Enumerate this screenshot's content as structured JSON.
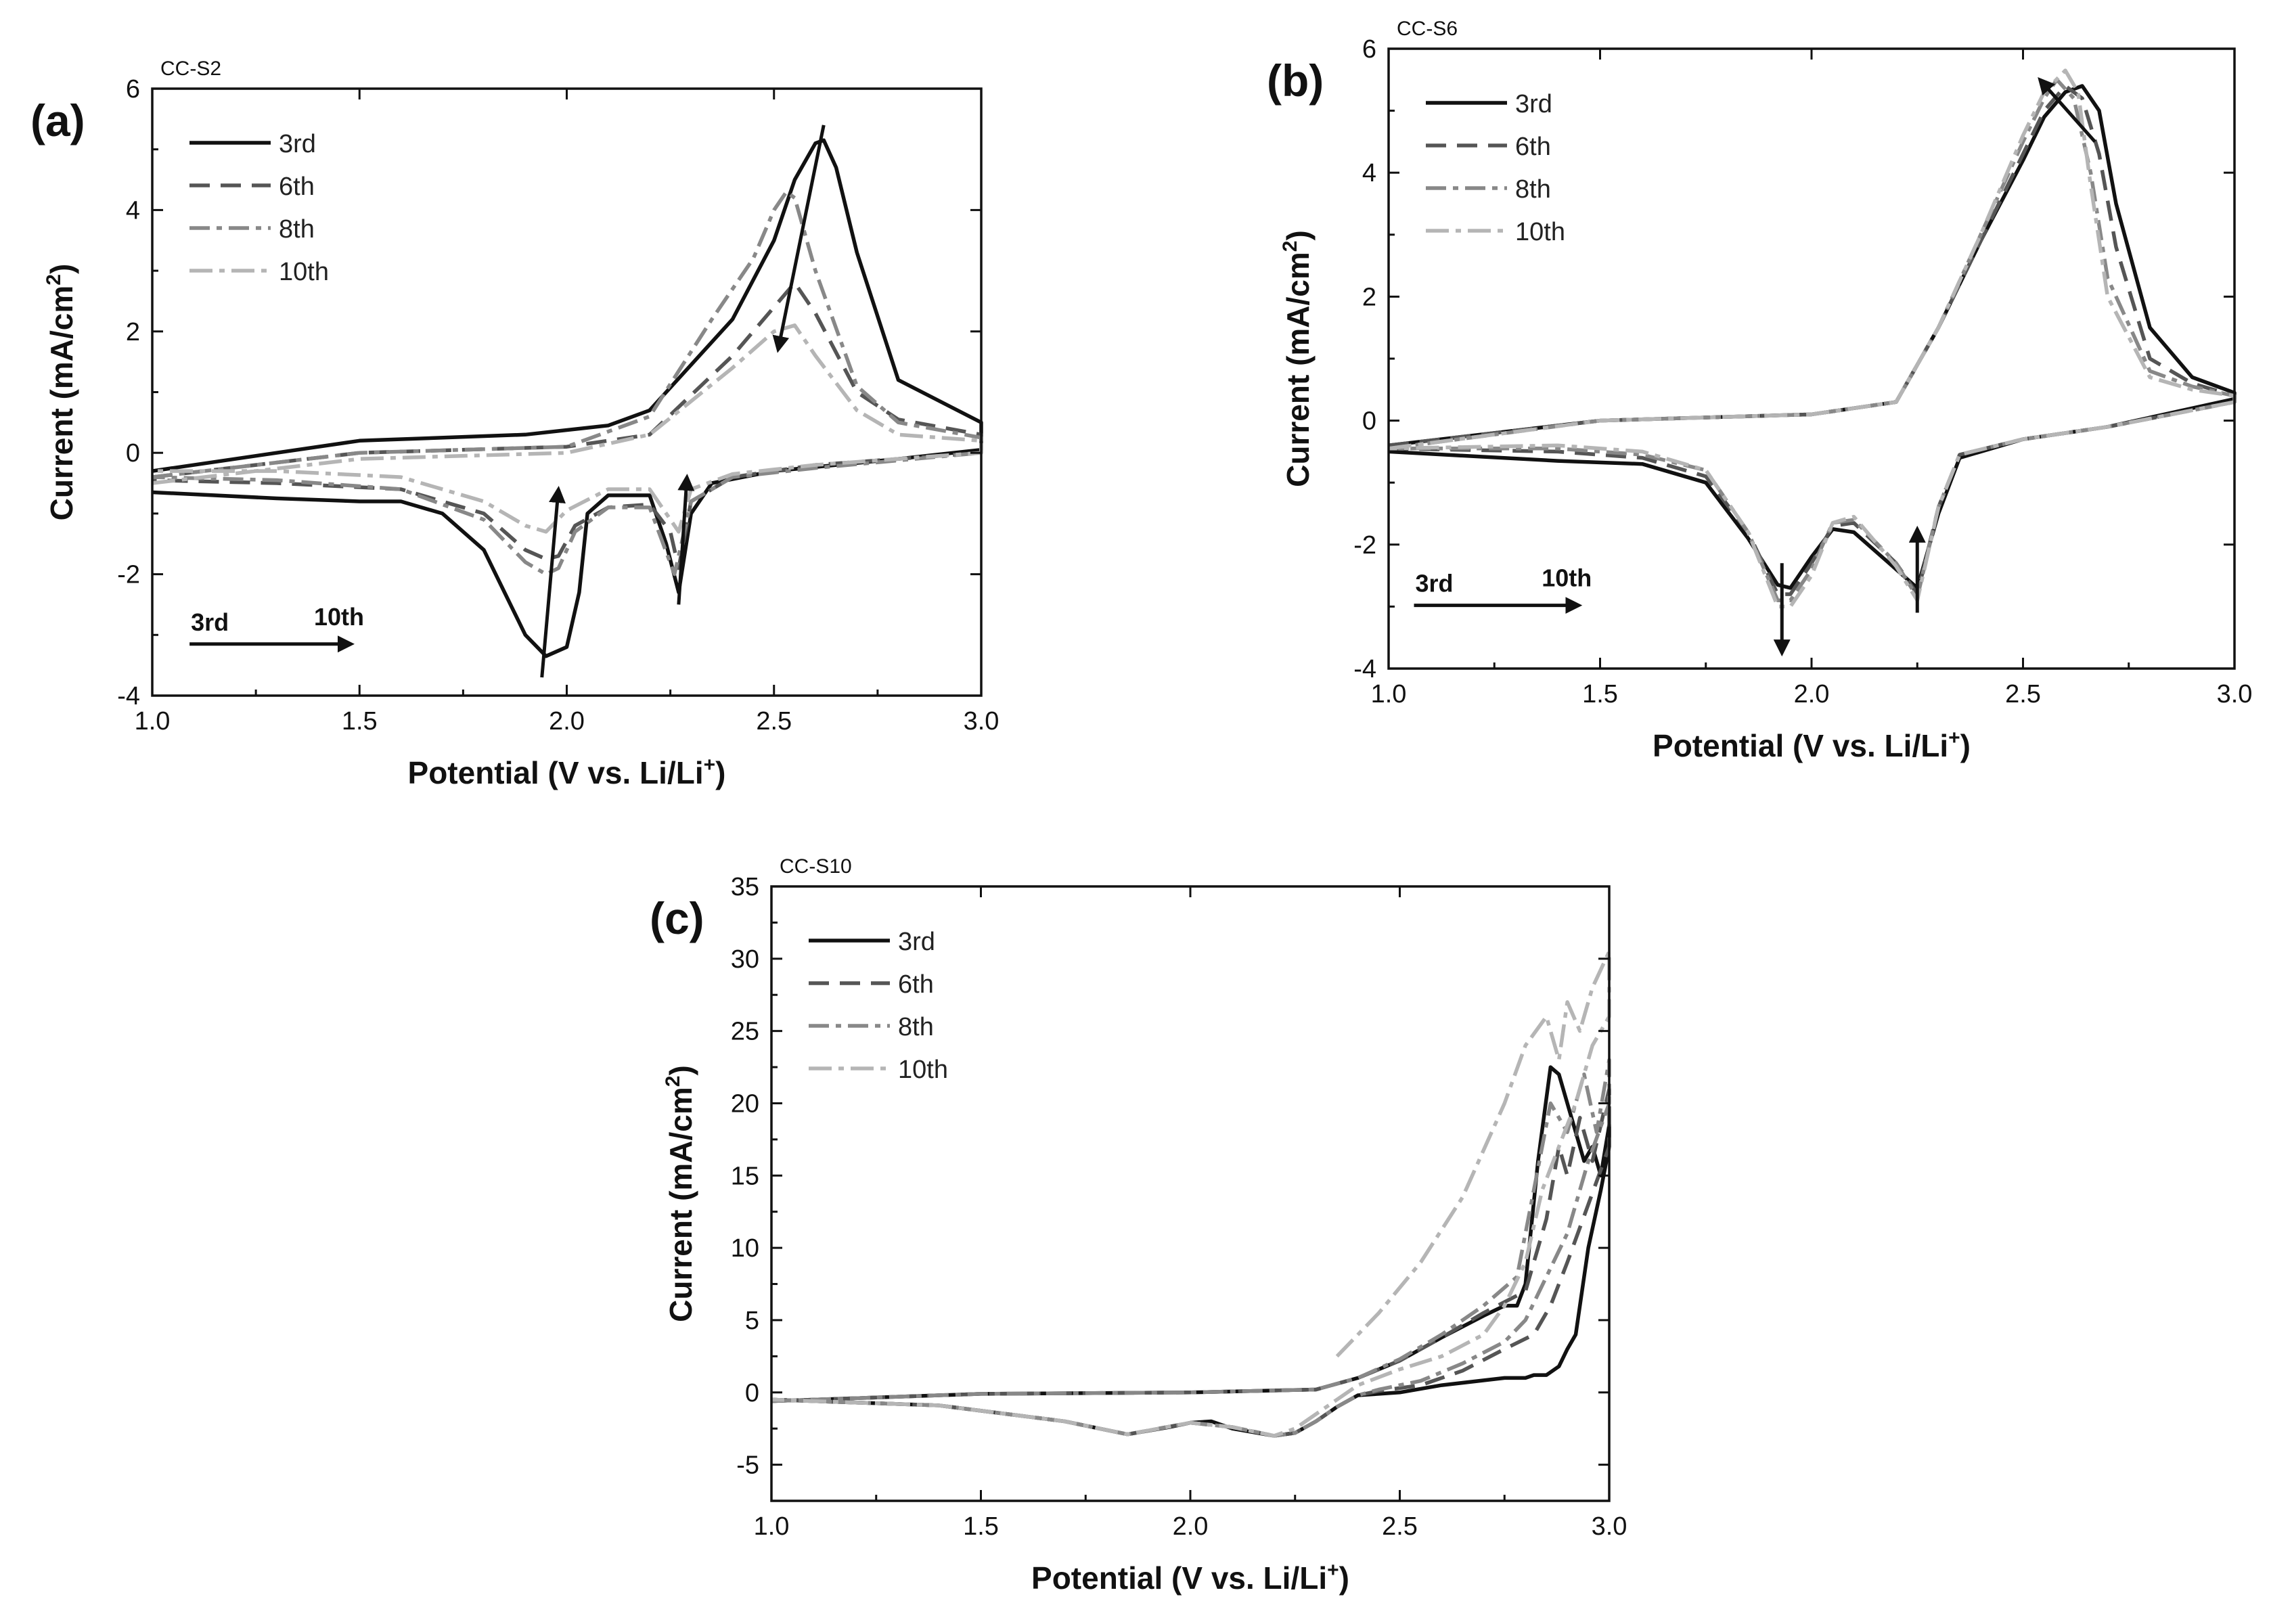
{
  "figure": {
    "description": "Cyclic voltammograms, cycles 3rd–10th",
    "colors": {
      "3rd": "#111111",
      "6th": "#555555",
      "8th": "#888888",
      "10th": "#b5b5b5"
    }
  },
  "chart_data": [
    {
      "type": "line",
      "panel": "(a)",
      "title": "CC-S2",
      "xlabel": "Potential (V vs. Li/Li",
      "xlabel_sup": "+",
      "xlabel_end": ")",
      "ylabel": "Current (mA/cm",
      "ylabel_sup": "2",
      "ylabel_end": ")",
      "xlim": [
        1.0,
        3.0
      ],
      "ylim": [
        -4,
        6
      ],
      "xticks": [
        1.0,
        1.5,
        2.0,
        2.5,
        3.0
      ],
      "xtick_labels": [
        "1.0",
        "1.5",
        "2.0",
        "2.5",
        "3.0"
      ],
      "yticks": [
        -4,
        -2,
        0,
        2,
        4,
        6
      ],
      "ytick_labels": [
        "-4",
        "-2",
        "0",
        "2",
        "4",
        "6"
      ],
      "legend": [
        "3rd",
        "6th",
        "8th",
        "10th"
      ],
      "legend_position": "top-left",
      "cycle_arrow": {
        "start": "3rd",
        "end": "10th",
        "from": [
          1.09,
          -3.15
        ],
        "to": [
          1.48,
          -3.15
        ]
      },
      "trend_arrows": [
        {
          "from": [
            1.94,
            -3.7
          ],
          "to": [
            1.98,
            -0.6
          ]
        },
        {
          "from": [
            2.27,
            -2.5
          ],
          "to": [
            2.29,
            -0.4
          ]
        },
        {
          "from": [
            2.62,
            5.4
          ],
          "to": [
            2.51,
            1.7
          ]
        }
      ],
      "series": [
        {
          "name": "3rd",
          "x": [
            1.0,
            1.5,
            1.9,
            2.1,
            2.2,
            2.4,
            2.5,
            2.55,
            2.6,
            2.62,
            2.65,
            2.7,
            2.8,
            3.0,
            3.0,
            2.8,
            2.5,
            2.35,
            2.3,
            2.27,
            2.24,
            2.2,
            2.1,
            2.05,
            2.03,
            2.0,
            1.95,
            1.9,
            1.85,
            1.8,
            1.7,
            1.6,
            1.5,
            1.3,
            1.0
          ],
          "y": [
            -0.3,
            0.2,
            0.3,
            0.45,
            0.7,
            2.2,
            3.5,
            4.5,
            5.1,
            5.15,
            4.7,
            3.3,
            1.2,
            0.5,
            0.05,
            -0.1,
            -0.3,
            -0.5,
            -1.0,
            -2.3,
            -1.5,
            -0.7,
            -0.7,
            -1.0,
            -2.3,
            -3.2,
            -3.35,
            -3.0,
            -2.3,
            -1.6,
            -1.0,
            -0.8,
            -0.8,
            -0.75,
            -0.65
          ]
        },
        {
          "name": "6th",
          "x": [
            1.0,
            1.5,
            2.0,
            2.2,
            2.4,
            2.5,
            2.55,
            2.6,
            2.7,
            2.8,
            3.0,
            3.0,
            2.6,
            2.4,
            2.3,
            2.27,
            2.25,
            2.2,
            2.1,
            2.02,
            1.98,
            1.95,
            1.9,
            1.8,
            1.6,
            1.3,
            1.0
          ],
          "y": [
            -0.4,
            0.0,
            0.1,
            0.3,
            1.6,
            2.4,
            2.8,
            2.3,
            1.0,
            0.55,
            0.3,
            0.0,
            -0.2,
            -0.4,
            -0.8,
            -1.9,
            -1.3,
            -0.85,
            -0.9,
            -1.2,
            -1.7,
            -1.75,
            -1.6,
            -1.0,
            -0.6,
            -0.5,
            -0.45
          ]
        },
        {
          "name": "8th",
          "x": [
            1.0,
            1.5,
            2.0,
            2.2,
            2.35,
            2.45,
            2.5,
            2.53,
            2.55,
            2.6,
            2.7,
            2.8,
            3.0,
            3.0,
            2.6,
            2.4,
            2.3,
            2.26,
            2.2,
            2.1,
            2.02,
            1.98,
            1.95,
            1.9,
            1.8,
            1.6,
            1.3,
            1.0
          ],
          "y": [
            -0.4,
            0.0,
            0.1,
            0.6,
            2.2,
            3.2,
            4.0,
            4.3,
            4.2,
            3.0,
            1.1,
            0.5,
            0.25,
            0.0,
            -0.25,
            -0.4,
            -0.8,
            -2.0,
            -0.9,
            -0.9,
            -1.3,
            -1.9,
            -2.0,
            -1.8,
            -1.1,
            -0.6,
            -0.45,
            -0.4
          ]
        },
        {
          "name": "10th",
          "x": [
            1.0,
            1.5,
            2.0,
            2.2,
            2.4,
            2.5,
            2.55,
            2.6,
            2.7,
            2.8,
            3.0,
            3.0,
            2.6,
            2.4,
            2.3,
            2.27,
            2.2,
            2.1,
            2.0,
            1.95,
            1.9,
            1.8,
            1.6,
            1.3,
            1.0
          ],
          "y": [
            -0.5,
            -0.1,
            0.0,
            0.3,
            1.4,
            2.0,
            2.1,
            1.6,
            0.7,
            0.3,
            0.2,
            0.0,
            -0.2,
            -0.35,
            -0.6,
            -1.3,
            -0.6,
            -0.6,
            -0.95,
            -1.3,
            -1.2,
            -0.8,
            -0.4,
            -0.3,
            -0.3
          ]
        }
      ]
    },
    {
      "type": "line",
      "panel": "(b)",
      "title": "CC-S6",
      "xlabel": "Potential (V vs. Li/Li",
      "xlabel_sup": "+",
      "xlabel_end": ")",
      "ylabel": "Current (mA/cm",
      "ylabel_sup": "2",
      "ylabel_end": ")",
      "xlim": [
        1.0,
        3.0
      ],
      "ylim": [
        -4,
        6
      ],
      "xticks": [
        1.0,
        1.5,
        2.0,
        2.5,
        3.0
      ],
      "xtick_labels": [
        "1.0",
        "1.5",
        "2.0",
        "2.5",
        "3.0"
      ],
      "yticks": [
        -4,
        -2,
        0,
        2,
        4,
        6
      ],
      "ytick_labels": [
        "-4",
        "-2",
        "0",
        "2",
        "4",
        "6"
      ],
      "legend": [
        "3rd",
        "6th",
        "8th",
        "10th"
      ],
      "legend_position": "top-left",
      "cycle_arrow": {
        "start": "3rd",
        "end": "10th",
        "from": [
          1.06,
          -2.98
        ],
        "to": [
          1.45,
          -2.98
        ]
      },
      "trend_arrows": [
        {
          "from": [
            1.93,
            -2.3
          ],
          "to": [
            1.93,
            -3.75
          ]
        },
        {
          "from": [
            2.25,
            -3.1
          ],
          "to": [
            2.25,
            -1.75
          ]
        },
        {
          "from": [
            2.67,
            4.5
          ],
          "to": [
            2.54,
            5.5
          ]
        }
      ],
      "series": [
        {
          "name": "3rd",
          "x": [
            1.0,
            1.5,
            2.0,
            2.2,
            2.3,
            2.4,
            2.5,
            2.55,
            2.6,
            2.64,
            2.68,
            2.72,
            2.8,
            2.9,
            3.0,
            3.0,
            2.7,
            2.5,
            2.35,
            2.3,
            2.25,
            2.2,
            2.1,
            2.05,
            2.0,
            1.95,
            1.92,
            1.85,
            1.75,
            1.6,
            1.4,
            1.0
          ],
          "y": [
            -0.4,
            0.0,
            0.1,
            0.3,
            1.5,
            2.9,
            4.2,
            4.9,
            5.3,
            5.4,
            5.0,
            3.5,
            1.5,
            0.7,
            0.45,
            0.35,
            -0.1,
            -0.3,
            -0.6,
            -1.5,
            -2.7,
            -2.4,
            -1.8,
            -1.75,
            -2.2,
            -2.7,
            -2.65,
            -1.9,
            -1.0,
            -0.7,
            -0.65,
            -0.5
          ]
        },
        {
          "name": "6th",
          "x": [
            1.0,
            1.5,
            2.0,
            2.2,
            2.3,
            2.4,
            2.5,
            2.55,
            2.6,
            2.64,
            2.68,
            2.72,
            2.8,
            2.9,
            3.0,
            3.0,
            2.7,
            2.5,
            2.35,
            2.3,
            2.25,
            2.2,
            2.1,
            2.05,
            2.0,
            1.95,
            1.92,
            1.85,
            1.75,
            1.6,
            1.4,
            1.0
          ],
          "y": [
            -0.4,
            0.0,
            0.1,
            0.3,
            1.5,
            2.9,
            4.3,
            5.0,
            5.4,
            5.2,
            4.3,
            2.8,
            1.0,
            0.6,
            0.4,
            0.3,
            -0.1,
            -0.3,
            -0.55,
            -1.4,
            -2.8,
            -2.3,
            -1.65,
            -1.7,
            -2.3,
            -2.8,
            -2.8,
            -1.8,
            -0.9,
            -0.6,
            -0.5,
            -0.45
          ]
        },
        {
          "name": "8th",
          "x": [
            1.0,
            1.5,
            2.0,
            2.2,
            2.3,
            2.4,
            2.5,
            2.55,
            2.58,
            2.62,
            2.66,
            2.7,
            2.8,
            2.9,
            3.0,
            3.0,
            2.7,
            2.5,
            2.35,
            2.3,
            2.25,
            2.2,
            2.1,
            2.05,
            2.0,
            1.95,
            1.92,
            1.85,
            1.75,
            1.6,
            1.4,
            1.0
          ],
          "y": [
            -0.45,
            0.0,
            0.1,
            0.3,
            1.5,
            3.0,
            4.5,
            5.2,
            5.5,
            5.2,
            4.0,
            2.3,
            0.8,
            0.55,
            0.4,
            0.3,
            -0.1,
            -0.3,
            -0.55,
            -1.4,
            -2.85,
            -2.3,
            -1.6,
            -1.65,
            -2.4,
            -2.9,
            -2.9,
            -1.8,
            -0.8,
            -0.55,
            -0.45,
            -0.45
          ]
        },
        {
          "name": "10th",
          "x": [
            1.0,
            1.5,
            2.0,
            2.2,
            2.3,
            2.4,
            2.5,
            2.55,
            2.6,
            2.63,
            2.66,
            2.7,
            2.8,
            2.9,
            3.0,
            3.0,
            2.7,
            2.5,
            2.35,
            2.3,
            2.25,
            2.2,
            2.1,
            2.05,
            2.0,
            1.95,
            1.92,
            1.85,
            1.75,
            1.6,
            1.4,
            1.0
          ],
          "y": [
            -0.45,
            0.0,
            0.1,
            0.3,
            1.5,
            3.0,
            4.6,
            5.3,
            5.65,
            5.3,
            3.8,
            2.0,
            0.7,
            0.5,
            0.4,
            0.3,
            -0.1,
            -0.3,
            -0.55,
            -1.4,
            -2.9,
            -2.35,
            -1.55,
            -1.65,
            -2.5,
            -3.0,
            -3.0,
            -1.8,
            -0.8,
            -0.5,
            -0.4,
            -0.45
          ]
        }
      ]
    },
    {
      "type": "line",
      "panel": "(c)",
      "title": "CC-S10",
      "xlabel": "Potential (V vs. Li/Li",
      "xlabel_sup": "+",
      "xlabel_end": ")",
      "ylabel": "Current (mA/cm",
      "ylabel_sup": "2",
      "ylabel_end": ")",
      "xlim": [
        1.0,
        3.0
      ],
      "ylim": [
        -7.5,
        35
      ],
      "xticks": [
        1.0,
        1.5,
        2.0,
        2.5,
        3.0
      ],
      "xtick_labels": [
        "1.0",
        "1.5",
        "2.0",
        "2.5",
        "3.0"
      ],
      "yticks": [
        -5,
        0,
        5,
        10,
        15,
        20,
        25,
        30,
        35
      ],
      "ytick_labels": [
        "-5",
        "0",
        "5",
        "10",
        "15",
        "20",
        "25",
        "30",
        "35"
      ],
      "legend": [
        "3rd",
        "6th",
        "8th",
        "10th"
      ],
      "legend_position": "top-left",
      "series": [
        {
          "name": "3rd",
          "x": [
            1.0,
            1.5,
            2.0,
            2.3,
            2.4,
            2.5,
            2.6,
            2.7,
            2.75,
            2.78,
            2.8,
            2.83,
            2.86,
            2.88,
            2.9,
            2.92,
            2.94,
            2.96,
            2.98,
            3.0,
            3.0,
            2.98,
            2.95,
            2.92,
            2.9,
            2.88,
            2.85,
            2.82,
            2.8,
            2.75,
            2.6,
            2.5,
            2.4,
            2.35,
            2.3,
            2.25,
            2.2,
            2.1,
            2.05,
            2.0,
            1.95,
            1.85,
            1.7,
            1.4,
            1.0
          ],
          "y": [
            -0.6,
            -0.1,
            0.0,
            0.2,
            1.0,
            2.2,
            3.8,
            5.3,
            6.0,
            6.0,
            7.5,
            16.0,
            22.5,
            22.0,
            20.0,
            18.0,
            16.0,
            17.0,
            15.0,
            18.5,
            17.0,
            14.0,
            10.0,
            4.0,
            3.0,
            1.8,
            1.2,
            1.2,
            1.0,
            1.0,
            0.5,
            0.0,
            -0.2,
            -1.0,
            -2.0,
            -2.8,
            -3.0,
            -2.5,
            -2.0,
            -2.1,
            -2.4,
            -2.9,
            -2.0,
            -0.9,
            -0.5
          ]
        },
        {
          "name": "6th",
          "x": [
            1.0,
            1.5,
            2.0,
            2.3,
            2.4,
            2.5,
            2.6,
            2.7,
            2.8,
            2.85,
            2.88,
            2.9,
            2.93,
            2.96,
            3.0,
            3.0,
            2.95,
            2.9,
            2.86,
            2.82,
            2.75,
            2.65,
            2.55,
            2.45,
            2.4,
            2.35,
            2.3,
            2.25,
            2.2,
            2.1,
            2.0,
            1.85,
            1.7,
            1.4,
            1.0
          ],
          "y": [
            -0.6,
            -0.1,
            0.0,
            0.2,
            1.0,
            2.2,
            3.8,
            5.5,
            7.0,
            12.0,
            17.0,
            15.0,
            19.0,
            16.0,
            21.0,
            17.0,
            13.0,
            9.0,
            6.0,
            4.0,
            3.0,
            1.5,
            0.5,
            0.1,
            -0.2,
            -1.0,
            -2.0,
            -2.8,
            -3.0,
            -2.4,
            -2.1,
            -2.9,
            -2.0,
            -0.9,
            -0.5
          ]
        },
        {
          "name": "8th",
          "x": [
            1.0,
            1.5,
            2.0,
            2.3,
            2.4,
            2.5,
            2.6,
            2.7,
            2.78,
            2.82,
            2.86,
            2.9,
            2.94,
            2.97,
            3.0,
            3.0,
            2.95,
            2.9,
            2.85,
            2.8,
            2.75,
            2.65,
            2.55,
            2.45,
            2.4,
            2.35,
            2.3,
            2.25,
            2.2,
            2.1,
            2.0,
            1.85,
            1.7,
            1.4,
            1.0
          ],
          "y": [
            -0.6,
            -0.1,
            0.0,
            0.2,
            1.0,
            2.3,
            4.0,
            6.0,
            8.0,
            14.0,
            20.0,
            18.0,
            22.0,
            18.0,
            23.0,
            20.0,
            16.0,
            11.0,
            8.0,
            5.0,
            3.5,
            2.0,
            0.8,
            0.2,
            -0.2,
            -1.0,
            -2.0,
            -2.8,
            -3.0,
            -2.4,
            -2.1,
            -2.9,
            -2.0,
            -0.9,
            -0.5
          ]
        },
        {
          "name": "10th",
          "x": [
            2.35,
            2.45,
            2.55,
            2.65,
            2.75,
            2.8,
            2.85,
            2.88,
            2.9,
            2.93,
            2.96,
            3.0,
            3.0,
            2.96,
            2.92,
            2.88,
            2.84,
            2.8,
            2.75,
            2.7,
            2.6,
            2.5,
            2.4,
            2.35,
            2.3,
            2.25,
            2.2,
            2.1,
            2.0,
            1.85,
            1.7,
            1.4,
            1.0
          ],
          "y": [
            2.5,
            5.5,
            9.0,
            13.5,
            20.0,
            24.0,
            26.0,
            23.0,
            27.0,
            25.0,
            28.0,
            30.5,
            26.0,
            24.0,
            20.0,
            17.0,
            14.0,
            9.0,
            6.0,
            4.0,
            2.5,
            1.6,
            0.5,
            -0.5,
            -1.5,
            -2.5,
            -3.0,
            -2.4,
            -2.1,
            -2.9,
            -2.0,
            -0.9,
            -0.5
          ]
        }
      ]
    }
  ]
}
